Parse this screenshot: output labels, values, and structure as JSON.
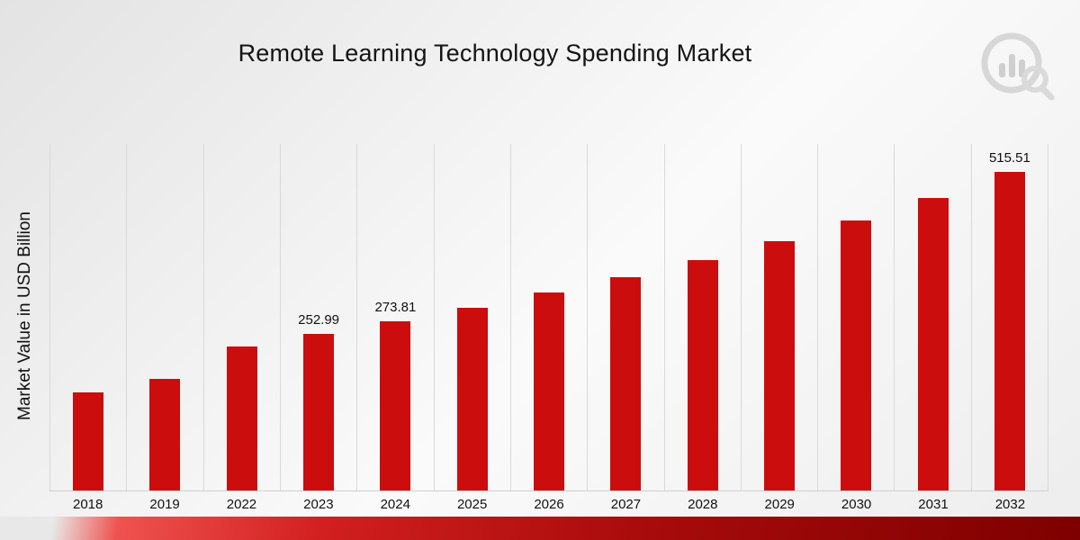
{
  "title": "Remote Learning Technology Spending Market",
  "ylabel": "Market Value in USD Billion",
  "colors": {
    "bar": "#cc0d0d",
    "gridline": "#d9d9d9",
    "strip_dark": "#7e0000"
  },
  "logo": {
    "name": "bar-chart-magnifier-logo"
  },
  "chart_data": {
    "type": "bar",
    "title": "Remote Learning Technology Spending Market",
    "xlabel": "",
    "ylabel": "Market Value in USD Billion",
    "categories": [
      "2018",
      "2019",
      "2022",
      "2023",
      "2024",
      "2025",
      "2026",
      "2027",
      "2028",
      "2029",
      "2030",
      "2031",
      "2032"
    ],
    "values": [
      158,
      181,
      233,
      252.99,
      273.81,
      295,
      320,
      345,
      372,
      403,
      436,
      472,
      515.51
    ],
    "data_labels": [
      null,
      null,
      null,
      "252.99",
      "273.81",
      null,
      null,
      null,
      null,
      null,
      null,
      null,
      "515.51"
    ],
    "ylim": [
      0,
      560
    ],
    "grid": "vertical-only",
    "legend": "none",
    "bar_color": "#cc0d0d"
  }
}
